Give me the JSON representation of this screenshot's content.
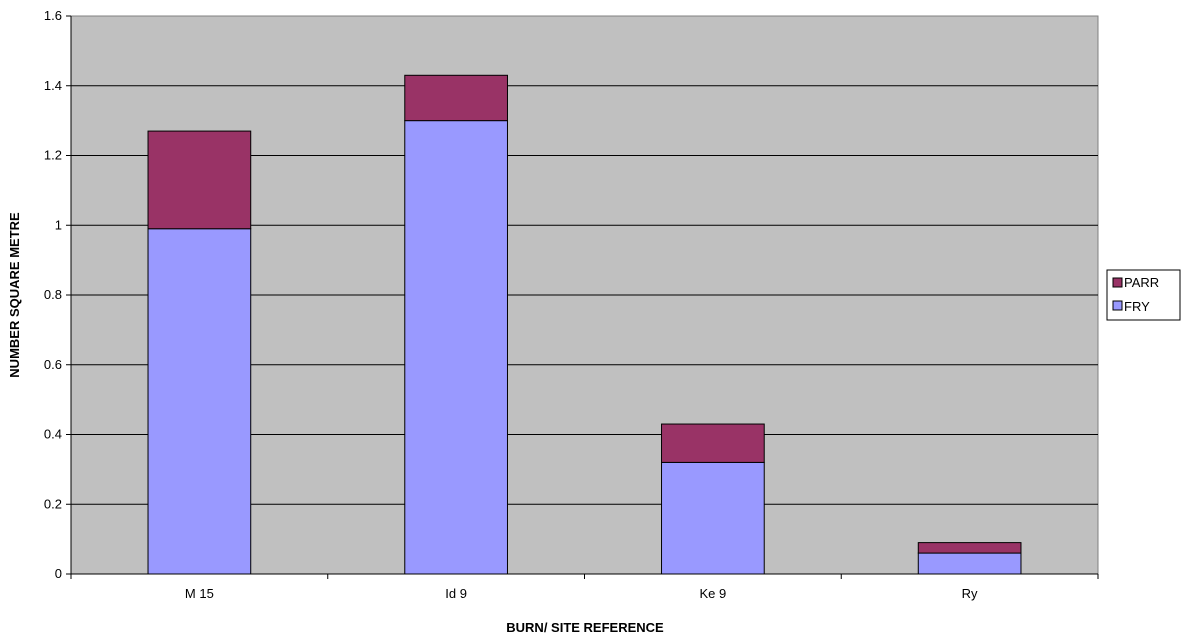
{
  "chart_data": {
    "type": "bar",
    "stacked": true,
    "categories": [
      "M 15",
      "Id 9",
      "Ke 9",
      "Ry"
    ],
    "series": [
      {
        "name": "FRY",
        "values": [
          0.99,
          1.3,
          0.32,
          0.06
        ]
      },
      {
        "name": "PARR",
        "values": [
          0.28,
          0.13,
          0.11,
          0.03
        ]
      }
    ],
    "title": "",
    "xlabel": "BURN/ SITE REFERENCE",
    "ylabel": "NUMBER SQUARE METRE",
    "ylim": [
      0,
      1.6
    ],
    "yticks": [
      "0",
      "0.2",
      "0.4",
      "0.6",
      "0.8",
      "1",
      "1.2",
      "1.4",
      "1.6"
    ],
    "grid": true,
    "legend_position": "right",
    "legend_order": [
      "PARR",
      "FRY"
    ],
    "colors": {
      "plot_background": "#c0c0c0",
      "FRY": "#9999ff",
      "PARR": "#993366",
      "gridline": "#000000"
    }
  }
}
